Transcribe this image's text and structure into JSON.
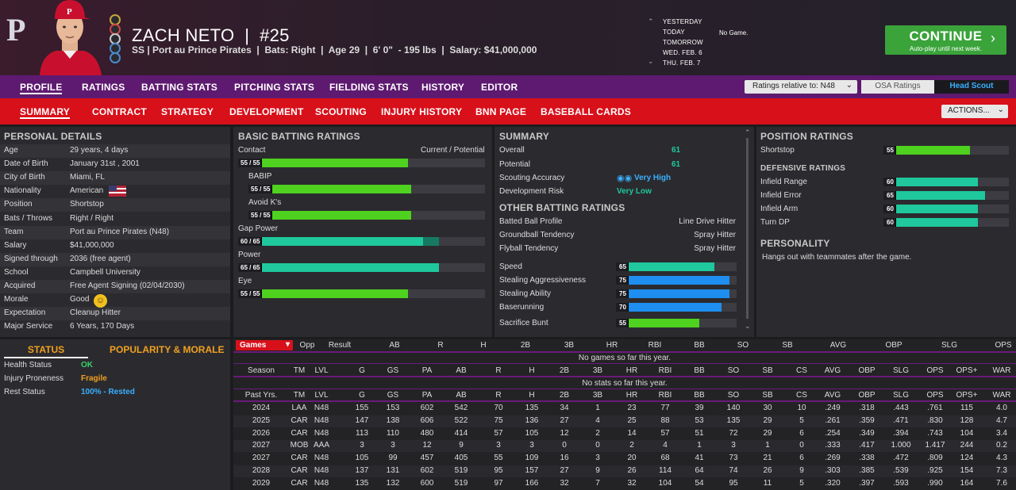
{
  "header": {
    "player_name": "ZACH NETO  |  #25",
    "player_info": "SS | Port au Prince Pirates  |  Bats: Right  |  Age 29  |  6' 0\"  - 195 lbs  |  Salary: $41,000,000",
    "dates": [
      "YESTERDAY",
      "TODAY",
      "TOMORROW",
      "WED. FEB. 6",
      "THU. FEB. 7"
    ],
    "today_game": "No Game.",
    "continue_label": "CONTINUE",
    "continue_sub": "Auto-play until next week.",
    "logo": "P"
  },
  "nav1": {
    "items": [
      "PROFILE",
      "RATINGS",
      "BATTING STATS",
      "PITCHING STATS",
      "FIELDING STATS",
      "HISTORY",
      "EDITOR"
    ],
    "ratings_relative": "Ratings relative to: N48",
    "osa_label": "OSA Ratings",
    "head_scout_label": "Head Scout"
  },
  "nav2": {
    "items": [
      "SUMMARY",
      "CONTRACT",
      "STRATEGY",
      "DEVELOPMENT",
      "SCOUTING",
      "INJURY HISTORY",
      "BNN PAGE",
      "BASEBALL CARDS"
    ],
    "actions_label": "ACTIONS..."
  },
  "personal": {
    "title": "PERSONAL DETAILS",
    "rows": [
      {
        "k": "Age",
        "v": "29 years, 4 days"
      },
      {
        "k": "Date of Birth",
        "v": "January 31st , 2001"
      },
      {
        "k": "City of Birth",
        "v": "Miami, FL"
      },
      {
        "k": "Nationality",
        "v": "American"
      },
      {
        "k": "Position",
        "v": "Shortstop"
      },
      {
        "k": "Bats / Throws",
        "v": "Right / Right"
      },
      {
        "k": "Team",
        "v": "Port au Prince Pirates (N48)"
      },
      {
        "k": "Salary",
        "v": "$41,000,000"
      },
      {
        "k": "Signed through",
        "v": "2036 (free agent)"
      },
      {
        "k": "School",
        "v": "Campbell University"
      },
      {
        "k": "Acquired",
        "v": "Free Agent Signing (02/04/2030)"
      },
      {
        "k": "Morale",
        "v": "Good"
      },
      {
        "k": "Expectation",
        "v": "Cleanup Hitter"
      },
      {
        "k": "Major Service",
        "v": "6 Years, 170 Days"
      }
    ]
  },
  "status": {
    "tab_status": "STATUS",
    "tab_popularity": "POPULARITY & MORALE",
    "rows": [
      {
        "k": "Health Status",
        "v": "OK",
        "color": "#38d26a"
      },
      {
        "k": "Injury Proneness",
        "v": "Fragile",
        "color": "#f0a020"
      },
      {
        "k": "Rest Status",
        "v": "100% - Rested",
        "color": "#3ab0ff"
      }
    ]
  },
  "batting": {
    "title": "BASIC BATTING RATINGS",
    "header_left": "Contact",
    "header_right": "Current / Potential",
    "items": [
      {
        "name": "Contact",
        "label": "55 / 55",
        "current": 55,
        "potential": 55,
        "color": "green"
      },
      {
        "name": "BABIP",
        "label": "55 / 55",
        "current": 55,
        "potential": 55,
        "color": "green"
      },
      {
        "name": "Avoid K's",
        "label": "55 / 55",
        "current": 55,
        "potential": 55,
        "color": "green"
      },
      {
        "name": "Gap Power",
        "label": "60 / 65",
        "current": 60,
        "potential": 65,
        "color": "teal"
      },
      {
        "name": "Power",
        "label": "65 / 65",
        "current": 65,
        "potential": 65,
        "color": "teal"
      },
      {
        "name": "Eye",
        "label": "55 / 55",
        "current": 55,
        "potential": 55,
        "color": "green"
      }
    ]
  },
  "summary": {
    "title": "SUMMARY",
    "overall_k": "Overall",
    "overall_v": "61",
    "potential_k": "Potential",
    "potential_v": "61",
    "scouting_k": "Scouting Accuracy",
    "scouting_v": "Very High",
    "devrisk_k": "Development Risk",
    "devrisk_v": "Very Low",
    "other_title": "OTHER BATTING RATINGS",
    "other": [
      {
        "k": "Batted Ball Profile",
        "v": "Line Drive Hitter"
      },
      {
        "k": "Groundball Tendency",
        "v": "Spray Hitter"
      },
      {
        "k": "Flyball Tendency",
        "v": "Spray Hitter"
      }
    ],
    "speed": [
      {
        "k": "Speed",
        "label": "65",
        "value": 65,
        "color": "teal"
      },
      {
        "k": "Stealing Aggressiveness",
        "label": "75",
        "value": 75,
        "color": "blue"
      },
      {
        "k": "Stealing Ability",
        "label": "75",
        "value": 75,
        "color": "blue"
      },
      {
        "k": "Baserunning",
        "label": "70",
        "value": 70,
        "color": "blue"
      },
      {
        "k": "Sacrifice Bunt",
        "label": "55",
        "value": 55,
        "color": "green"
      }
    ]
  },
  "position": {
    "title": "POSITION RATINGS",
    "shortstop_k": "Shortstop",
    "shortstop_label": "55",
    "shortstop_value": 55,
    "def_title": "DEFENSIVE RATINGS",
    "def": [
      {
        "k": "Infield Range",
        "label": "60",
        "value": 60
      },
      {
        "k": "Infield Error",
        "label": "65",
        "value": 65
      },
      {
        "k": "Infield Arm",
        "label": "60",
        "value": 60
      },
      {
        "k": "Turn DP",
        "label": "60",
        "value": 60
      }
    ],
    "personality_title": "PERSONALITY",
    "personality_text": "Hangs out with teammates after the game."
  },
  "games": {
    "select": "Games",
    "headers": [
      "Opp",
      "Result",
      "AB",
      "R",
      "H",
      "2B",
      "3B",
      "HR",
      "RBI",
      "BB",
      "SO",
      "SB",
      "AVG",
      "OBP",
      "SLG",
      "OPS"
    ],
    "empty": "No games so far this year."
  },
  "season": {
    "headers": [
      "Season",
      "TM",
      "LVL",
      "G",
      "GS",
      "PA",
      "AB",
      "R",
      "H",
      "2B",
      "3B",
      "HR",
      "RBI",
      "BB",
      "SO",
      "SB",
      "CS",
      "AVG",
      "OBP",
      "SLG",
      "OPS",
      "OPS+",
      "WAR"
    ],
    "empty": "No stats so far this year."
  },
  "past": {
    "headers": [
      "Past Yrs.",
      "TM",
      "LVL",
      "G",
      "GS",
      "PA",
      "AB",
      "R",
      "H",
      "2B",
      "3B",
      "HR",
      "RBI",
      "BB",
      "SO",
      "SB",
      "CS",
      "AVG",
      "OBP",
      "SLG",
      "OPS",
      "OPS+",
      "WAR"
    ],
    "rows": [
      [
        "2024",
        "LAA",
        "N48",
        "155",
        "153",
        "602",
        "542",
        "70",
        "135",
        "34",
        "1",
        "23",
        "77",
        "39",
        "140",
        "30",
        "10",
        ".249",
        ".318",
        ".443",
        ".761",
        "115",
        "4.0"
      ],
      [
        "2025",
        "CAR",
        "N48",
        "147",
        "138",
        "606",
        "522",
        "75",
        "136",
        "27",
        "4",
        "25",
        "88",
        "53",
        "135",
        "29",
        "5",
        ".261",
        ".359",
        ".471",
        ".830",
        "128",
        "4.7"
      ],
      [
        "2026",
        "CAR",
        "N48",
        "113",
        "110",
        "480",
        "414",
        "57",
        "105",
        "12",
        "2",
        "14",
        "57",
        "51",
        "72",
        "29",
        "6",
        ".254",
        ".349",
        ".394",
        ".743",
        "104",
        "3.4"
      ],
      [
        "2027",
        "MOB",
        "AAA",
        "3",
        "3",
        "12",
        "9",
        "3",
        "3",
        "0",
        "0",
        "2",
        "4",
        "1",
        "3",
        "1",
        "0",
        ".333",
        ".417",
        "1.000",
        "1.417",
        "244",
        "0.2"
      ],
      [
        "2027",
        "CAR",
        "N48",
        "105",
        "99",
        "457",
        "405",
        "55",
        "109",
        "16",
        "3",
        "20",
        "68",
        "41",
        "73",
        "21",
        "6",
        ".269",
        ".338",
        ".472",
        ".809",
        "124",
        "4.3"
      ],
      [
        "2028",
        "CAR",
        "N48",
        "137",
        "131",
        "602",
        "519",
        "95",
        "157",
        "27",
        "9",
        "26",
        "114",
        "64",
        "74",
        "26",
        "9",
        ".303",
        ".385",
        ".539",
        ".925",
        "154",
        "7.3"
      ],
      [
        "2029",
        "CAR",
        "N48",
        "135",
        "132",
        "600",
        "519",
        "97",
        "166",
        "32",
        "7",
        "32",
        "104",
        "54",
        "95",
        "11",
        "5",
        ".320",
        ".397",
        ".593",
        ".990",
        "164",
        "7.6"
      ]
    ]
  }
}
